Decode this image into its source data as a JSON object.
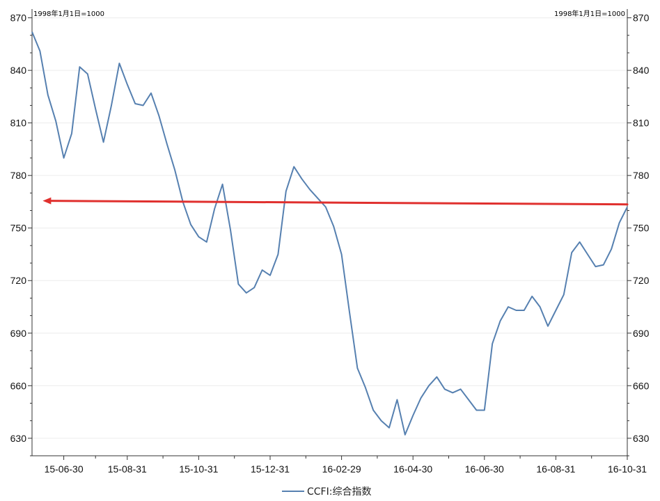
{
  "chart_data": {
    "type": "line",
    "unit_note_left": "1998年1月1日=1000",
    "unit_note_right": "1998年1月1日=1000",
    "ylim": [
      620,
      875
    ],
    "y_ticks": [
      630,
      660,
      690,
      720,
      750,
      780,
      810,
      840,
      870
    ],
    "x_ticks": [
      "15-06-30",
      "15-08-31",
      "15-10-31",
      "15-12-31",
      "16-02-29",
      "16-04-30",
      "16-06-30",
      "16-08-31",
      "16-10-31"
    ],
    "x_tick_index": [
      4,
      12,
      21,
      30,
      39,
      48,
      57,
      66,
      75
    ],
    "grid": true,
    "legend_position": "bottom",
    "series": [
      {
        "name": "CCFI:综合指数",
        "color": "#5680b0",
        "values": [
          862,
          851,
          826,
          811,
          790,
          804,
          842,
          838,
          818,
          799,
          820,
          844,
          832,
          821,
          820,
          827,
          814,
          798,
          783,
          765,
          752,
          745,
          742,
          761,
          775,
          749,
          718,
          713,
          716,
          726,
          723,
          735,
          771,
          785,
          778,
          772,
          767,
          762,
          751,
          735,
          702,
          670,
          659,
          646,
          640,
          636,
          652,
          632,
          643,
          653,
          660,
          665,
          658,
          656,
          658,
          652,
          646,
          646,
          684,
          697,
          705,
          703,
          703,
          711,
          705,
          694,
          703,
          712,
          736,
          742,
          735,
          728,
          729,
          738,
          753,
          762
        ]
      }
    ],
    "annotations": [
      {
        "type": "arrow",
        "color": "#e0302e",
        "from_value": 763.5,
        "to_value": 765.5,
        "from_index": 76,
        "to_index": 1.35
      }
    ]
  }
}
